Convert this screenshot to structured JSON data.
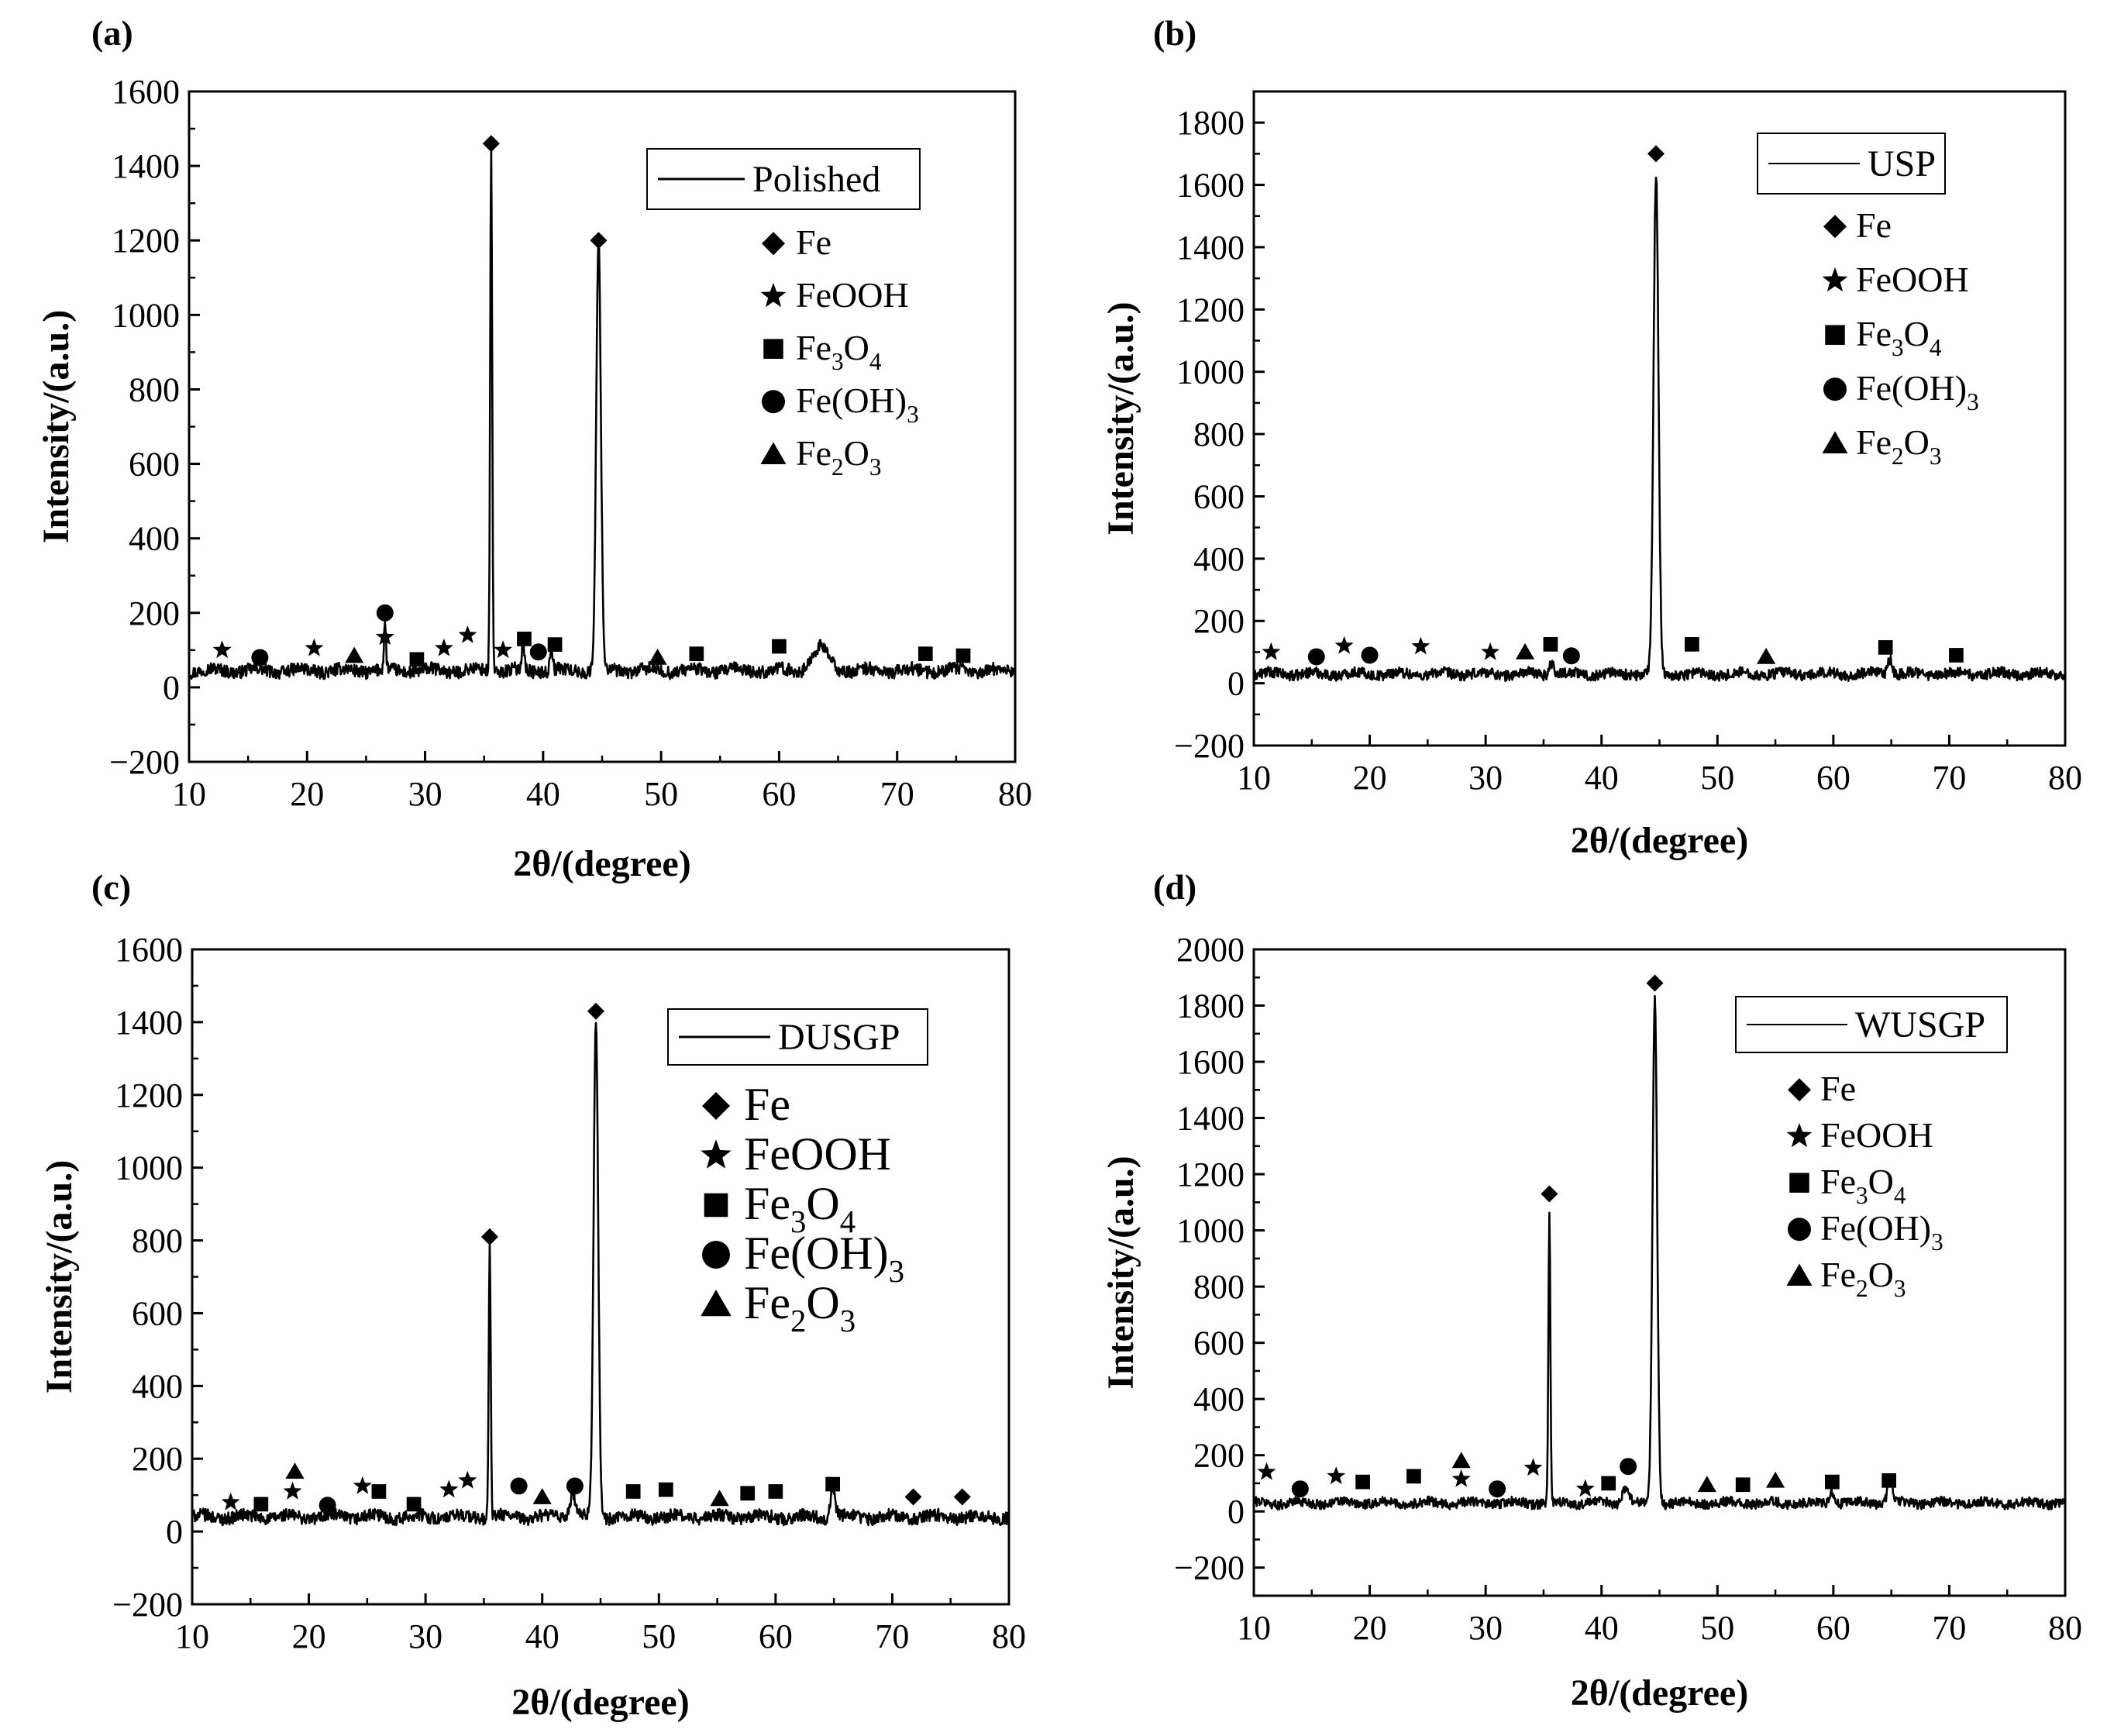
{
  "figure": {
    "background": "#ffffff",
    "line_color": "#000000"
  },
  "chart_data": [
    {
      "type": "line",
      "panel": "(a)",
      "series": [
        {
          "name": "Polished"
        }
      ],
      "xlabel": "2θ/(degree)",
      "ylabel": "Intensity/(a.u.)",
      "xlim": [
        10,
        80
      ],
      "ylim": [
        -200,
        1600
      ],
      "xticks": [
        10,
        20,
        30,
        40,
        50,
        60,
        70,
        80
      ],
      "yticks": [
        -200,
        0,
        200,
        400,
        600,
        800,
        1000,
        1200,
        1400,
        1600
      ],
      "ytick_labels": [
        "−200",
        "0",
        "200",
        "400",
        "600",
        "800",
        "1000",
        "1200",
        "1400",
        "1600"
      ],
      "baseline": 45,
      "peaks": [
        {
          "x": 35.6,
          "y": 1405,
          "w": 0.12
        },
        {
          "x": 44.7,
          "y": 1150,
          "w": 0.28
        },
        {
          "x": 26.6,
          "y": 120,
          "w": 0.12
        },
        {
          "x": 38.3,
          "y": 80,
          "w": 0.15
        },
        {
          "x": 40.7,
          "y": 70,
          "w": 0.15
        },
        {
          "x": 63.5,
          "y": 60,
          "w": 1.0
        }
      ],
      "markers": [
        {
          "shape": "diamond",
          "x": 35.6,
          "y": 1460
        },
        {
          "shape": "diamond",
          "x": 44.7,
          "y": 1200
        },
        {
          "shape": "star",
          "x": 12.8,
          "y": 100
        },
        {
          "shape": "circle",
          "x": 16.0,
          "y": 80
        },
        {
          "shape": "star",
          "x": 20.6,
          "y": 105
        },
        {
          "shape": "triangle",
          "x": 24.0,
          "y": 85
        },
        {
          "shape": "circle",
          "x": 26.6,
          "y": 200
        },
        {
          "shape": "star",
          "x": 26.6,
          "y": 135
        },
        {
          "shape": "square",
          "x": 29.3,
          "y": 75
        },
        {
          "shape": "star",
          "x": 31.6,
          "y": 105
        },
        {
          "shape": "star",
          "x": 33.6,
          "y": 140
        },
        {
          "shape": "star",
          "x": 36.6,
          "y": 100
        },
        {
          "shape": "square",
          "x": 38.4,
          "y": 130
        },
        {
          "shape": "circle",
          "x": 39.6,
          "y": 95
        },
        {
          "shape": "square",
          "x": 41.0,
          "y": 115
        },
        {
          "shape": "triangle",
          "x": 49.7,
          "y": 80
        },
        {
          "shape": "square",
          "x": 53.0,
          "y": 90
        },
        {
          "shape": "square",
          "x": 60.0,
          "y": 110
        },
        {
          "shape": "square",
          "x": 72.4,
          "y": 90
        },
        {
          "shape": "square",
          "x": 75.6,
          "y": 85
        }
      ],
      "legend_entries": [
        {
          "shape": "diamond",
          "label": "Fe"
        },
        {
          "shape": "star",
          "label": "FeOOH"
        },
        {
          "shape": "square",
          "label": "Fe",
          "sub1": "3",
          "mid": "O",
          "sub2": "4"
        },
        {
          "shape": "circle",
          "label": "Fe(OH)",
          "sub1": "3"
        },
        {
          "shape": "triangle",
          "label": "Fe",
          "sub1": "2",
          "mid": "O",
          "sub2": "3"
        }
      ]
    },
    {
      "type": "line",
      "panel": "(b)",
      "series": [
        {
          "name": "USP"
        }
      ],
      "xlabel": "2θ/(degree)",
      "ylabel": "Intensity/(a.u.)",
      "xlim": [
        10,
        80
      ],
      "ylim": [
        -200,
        1900
      ],
      "xticks": [
        10,
        20,
        30,
        40,
        50,
        60,
        70,
        80
      ],
      "yticks": [
        -200,
        0,
        200,
        400,
        600,
        800,
        1000,
        1200,
        1400,
        1600,
        1800
      ],
      "ytick_labels": [
        "−200",
        "0",
        "200",
        "400",
        "600",
        "800",
        "1000",
        "1200",
        "1400",
        "1600",
        "1800"
      ],
      "baseline": 30,
      "peaks": [
        {
          "x": 44.7,
          "y": 1600,
          "w": 0.3
        },
        {
          "x": 35.7,
          "y": 40,
          "w": 0.3
        },
        {
          "x": 64.9,
          "y": 50,
          "w": 0.3
        }
      ],
      "markers": [
        {
          "shape": "diamond",
          "x": 44.7,
          "y": 1700
        },
        {
          "shape": "star",
          "x": 11.5,
          "y": 100
        },
        {
          "shape": "circle",
          "x": 15.4,
          "y": 85
        },
        {
          "shape": "star",
          "x": 17.8,
          "y": 120
        },
        {
          "shape": "circle",
          "x": 20.0,
          "y": 90
        },
        {
          "shape": "star",
          "x": 24.4,
          "y": 118
        },
        {
          "shape": "star",
          "x": 30.4,
          "y": 100
        },
        {
          "shape": "triangle",
          "x": 33.4,
          "y": 100
        },
        {
          "shape": "square",
          "x": 35.6,
          "y": 125
        },
        {
          "shape": "circle",
          "x": 37.4,
          "y": 88
        },
        {
          "shape": "square",
          "x": 47.8,
          "y": 125
        },
        {
          "shape": "triangle",
          "x": 54.2,
          "y": 85
        },
        {
          "shape": "square",
          "x": 64.5,
          "y": 115
        },
        {
          "shape": "square",
          "x": 70.6,
          "y": 90
        }
      ],
      "legend_entries": [
        {
          "shape": "diamond",
          "label": "Fe"
        },
        {
          "shape": "star",
          "label": "FeOOH"
        },
        {
          "shape": "square",
          "label": "Fe",
          "sub1": "3",
          "mid": "O",
          "sub2": "4"
        },
        {
          "shape": "circle",
          "label": "Fe(OH)",
          "sub1": "3"
        },
        {
          "shape": "triangle",
          "label": "Fe",
          "sub1": "2",
          "mid": "O",
          "sub2": "3"
        }
      ]
    },
    {
      "type": "line",
      "panel": "(c)",
      "series": [
        {
          "name": "DUSGP"
        }
      ],
      "xlabel": "2θ/(degree)",
      "ylabel": "Intensity/(a.u.)",
      "xlim": [
        10,
        80
      ],
      "ylim": [
        -200,
        1600
      ],
      "xticks": [
        10,
        20,
        30,
        40,
        50,
        60,
        70,
        80
      ],
      "yticks": [
        -200,
        0,
        200,
        400,
        600,
        800,
        1000,
        1200,
        1400,
        1600
      ],
      "ytick_labels": [
        "−200",
        "0",
        "200",
        "400",
        "600",
        "800",
        "1000",
        "1200",
        "1400",
        "1600"
      ],
      "baseline": 40,
      "peaks": [
        {
          "x": 35.5,
          "y": 750,
          "w": 0.12
        },
        {
          "x": 44.6,
          "y": 1360,
          "w": 0.28
        },
        {
          "x": 64.9,
          "y": 80,
          "w": 0.3
        },
        {
          "x": 42.6,
          "y": 60,
          "w": 0.4
        }
      ],
      "markers": [
        {
          "shape": "diamond",
          "x": 44.6,
          "y": 1430
        },
        {
          "shape": "diamond",
          "x": 35.5,
          "y": 810
        },
        {
          "shape": "star",
          "x": 13.3,
          "y": 80
        },
        {
          "shape": "square",
          "x": 15.9,
          "y": 75
        },
        {
          "shape": "triangle",
          "x": 18.8,
          "y": 165
        },
        {
          "shape": "star",
          "x": 18.6,
          "y": 110
        },
        {
          "shape": "circle",
          "x": 21.6,
          "y": 72
        },
        {
          "shape": "star",
          "x": 24.6,
          "y": 125
        },
        {
          "shape": "square",
          "x": 26.0,
          "y": 110
        },
        {
          "shape": "square",
          "x": 29.0,
          "y": 75
        },
        {
          "shape": "star",
          "x": 32.0,
          "y": 115
        },
        {
          "shape": "star",
          "x": 33.6,
          "y": 140
        },
        {
          "shape": "circle",
          "x": 38.0,
          "y": 125
        },
        {
          "shape": "triangle",
          "x": 40.0,
          "y": 95
        },
        {
          "shape": "circle",
          "x": 42.8,
          "y": 125
        },
        {
          "shape": "square",
          "x": 47.8,
          "y": 110
        },
        {
          "shape": "square",
          "x": 50.6,
          "y": 115
        },
        {
          "shape": "triangle",
          "x": 55.2,
          "y": 90
        },
        {
          "shape": "square",
          "x": 57.6,
          "y": 105
        },
        {
          "shape": "square",
          "x": 60.0,
          "y": 110
        },
        {
          "shape": "square",
          "x": 64.9,
          "y": 130
        },
        {
          "shape": "diamond",
          "x": 71.8,
          "y": 95
        },
        {
          "shape": "diamond",
          "x": 76.0,
          "y": 95
        }
      ],
      "legend_entries": [
        {
          "shape": "diamond",
          "label": "Fe"
        },
        {
          "shape": "star",
          "label": "FeOOH"
        },
        {
          "shape": "square",
          "label": "Fe",
          "sub1": "3",
          "mid": "O",
          "sub2": "4"
        },
        {
          "shape": "circle",
          "label": "Fe(OH)",
          "sub1": "3"
        },
        {
          "shape": "triangle",
          "label": "Fe",
          "sub1": "2",
          "mid": "O",
          "sub2": "3"
        }
      ]
    },
    {
      "type": "line",
      "panel": "(d)",
      "series": [
        {
          "name": "WUSGP"
        }
      ],
      "xlabel": "2θ/(degree)",
      "ylabel": "Intensity/(a.u.)",
      "xlim": [
        10,
        80
      ],
      "ylim": [
        -300,
        2000
      ],
      "xticks": [
        10,
        20,
        30,
        40,
        50,
        60,
        70,
        80
      ],
      "yticks": [
        -200,
        0,
        200,
        400,
        600,
        800,
        1000,
        1200,
        1400,
        1600,
        1800,
        2000
      ],
      "ytick_labels": [
        "−200",
        "0",
        "200",
        "400",
        "600",
        "800",
        "1000",
        "1200",
        "1400",
        "1600",
        "1800",
        "2000"
      ],
      "baseline": 30,
      "peaks": [
        {
          "x": 35.5,
          "y": 1030,
          "w": 0.12
        },
        {
          "x": 44.6,
          "y": 1800,
          "w": 0.28
        },
        {
          "x": 64.9,
          "y": 90,
          "w": 0.3
        },
        {
          "x": 59.9,
          "y": 40,
          "w": 0.25
        },
        {
          "x": 42.1,
          "y": 60,
          "w": 0.4
        }
      ],
      "markers": [
        {
          "shape": "diamond",
          "x": 44.6,
          "y": 1880
        },
        {
          "shape": "diamond",
          "x": 35.5,
          "y": 1130
        },
        {
          "shape": "star",
          "x": 11.1,
          "y": 140
        },
        {
          "shape": "circle",
          "x": 14.0,
          "y": 80
        },
        {
          "shape": "star",
          "x": 17.1,
          "y": 125
        },
        {
          "shape": "square",
          "x": 19.4,
          "y": 105
        },
        {
          "shape": "square",
          "x": 23.8,
          "y": 125
        },
        {
          "shape": "triangle",
          "x": 27.9,
          "y": 180
        },
        {
          "shape": "star",
          "x": 27.9,
          "y": 115
        },
        {
          "shape": "circle",
          "x": 31.0,
          "y": 80
        },
        {
          "shape": "star",
          "x": 34.1,
          "y": 155
        },
        {
          "shape": "star",
          "x": 38.6,
          "y": 80
        },
        {
          "shape": "square",
          "x": 40.6,
          "y": 100
        },
        {
          "shape": "circle",
          "x": 42.3,
          "y": 160
        },
        {
          "shape": "triangle",
          "x": 49.1,
          "y": 95
        },
        {
          "shape": "square",
          "x": 52.2,
          "y": 95
        },
        {
          "shape": "triangle",
          "x": 55.0,
          "y": 110
        },
        {
          "shape": "square",
          "x": 59.9,
          "y": 105
        },
        {
          "shape": "square",
          "x": 64.8,
          "y": 110
        }
      ],
      "legend_entries": [
        {
          "shape": "diamond",
          "label": "Fe"
        },
        {
          "shape": "star",
          "label": "FeOOH"
        },
        {
          "shape": "square",
          "label": "Fe",
          "sub1": "3",
          "mid": "O",
          "sub2": "4"
        },
        {
          "shape": "circle",
          "label": "Fe(OH)",
          "sub1": "3"
        },
        {
          "shape": "triangle",
          "label": "Fe",
          "sub1": "2",
          "mid": "O",
          "sub2": "3"
        }
      ]
    }
  ]
}
